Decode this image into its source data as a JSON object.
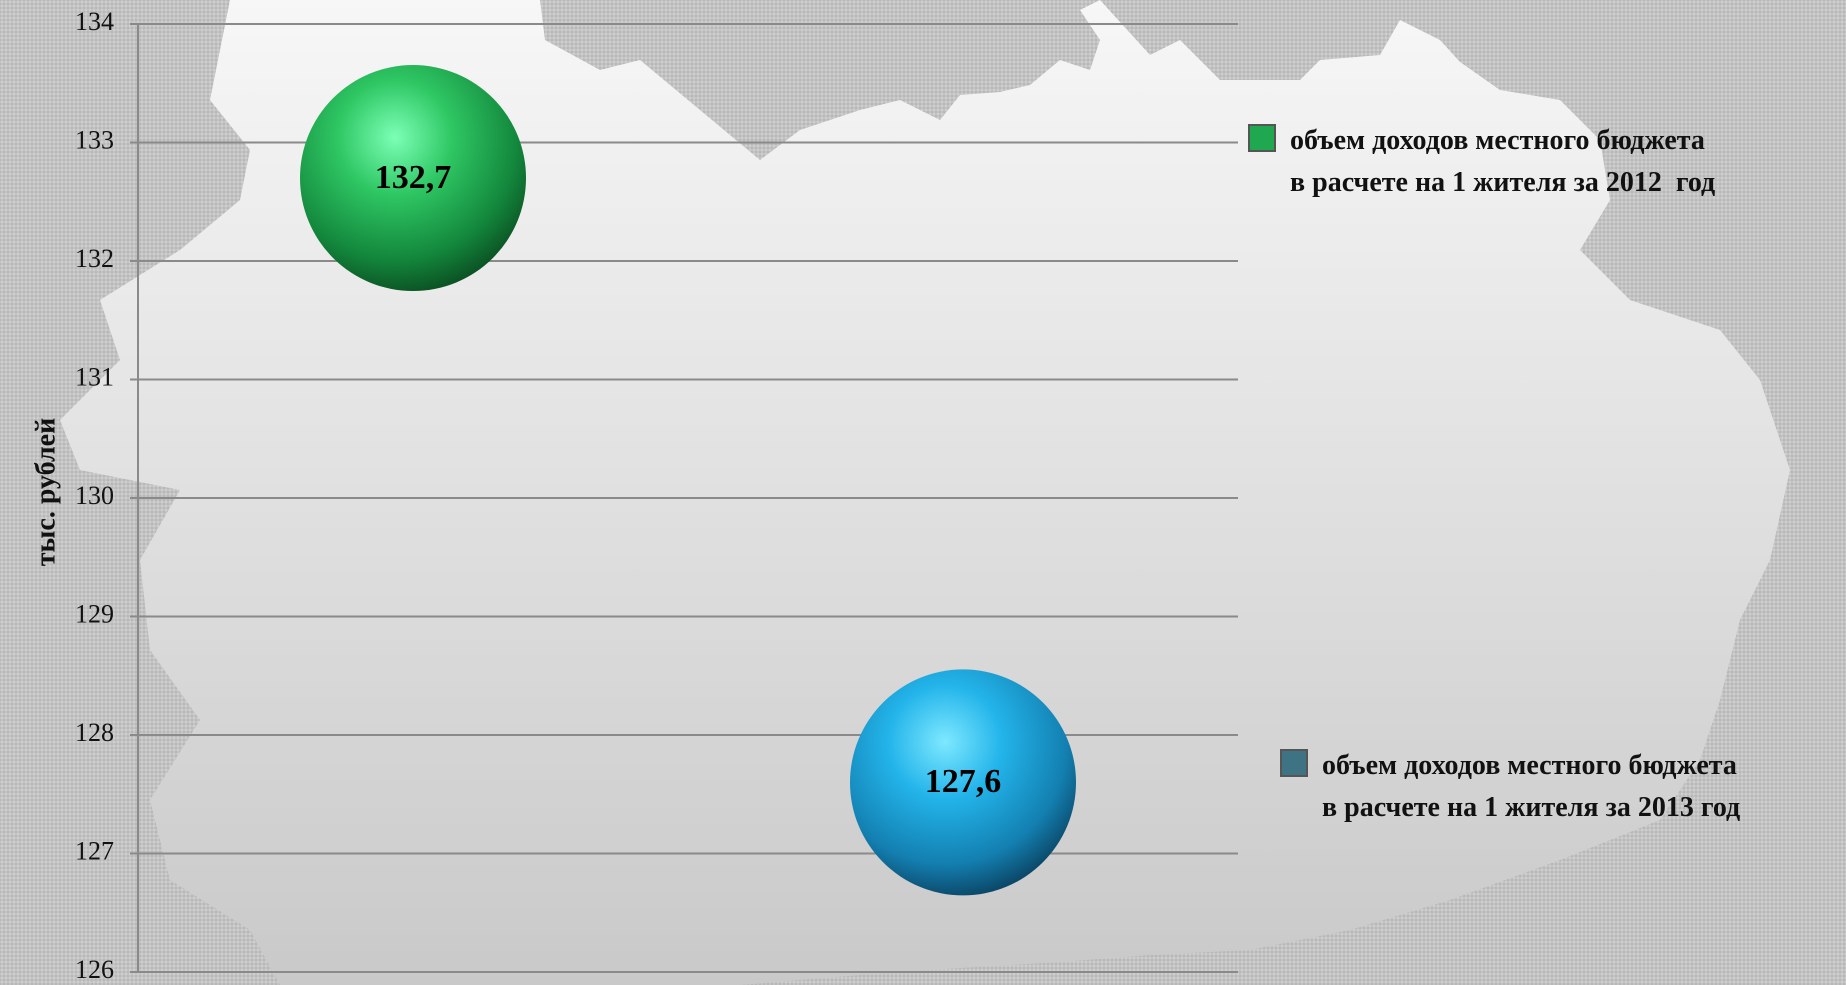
{
  "chart_data": {
    "type": "scatter",
    "title": "",
    "xlabel": "",
    "ylabel": "тыс. рублей",
    "ylim": [
      126,
      134
    ],
    "yticks": [
      "126",
      "127",
      "128",
      "129",
      "130",
      "131",
      "132",
      "133",
      "134"
    ],
    "grid": true,
    "legend_position": "right",
    "series": [
      {
        "name": "объем доходов местного бюджета\nв расчете на 1 жителя за 2012  год",
        "x": [
          1
        ],
        "values": [
          132.7
        ],
        "label": "132,7",
        "color": "#1fa84f"
      },
      {
        "name": "объем доходов местного бюджета\nв расчете на 1 жителя за 2013 год",
        "x": [
          2
        ],
        "values": [
          127.6
        ],
        "label": "127,6",
        "color": "#23a9e0",
        "legend_color": "#3d7382"
      }
    ]
  }
}
